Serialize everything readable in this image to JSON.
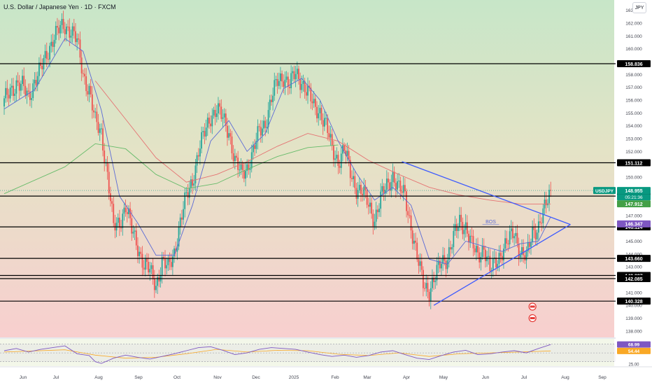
{
  "header": {
    "title": "U.S. Dollar / Japanese Yen · 1D · FXCM",
    "currency_button": "JPY"
  },
  "colors": {
    "up": "#26a69a",
    "down": "#ef5350",
    "ema_fast": "#5b6bd6",
    "ma_red": "#e57373",
    "ma_green": "#66bb6a",
    "triangle": "#3d5afe",
    "hline": "#000000",
    "bg_top": "#c7e6c8",
    "bg_bottom": "#f8cfcf"
  },
  "chart_data": [
    {
      "type": "candlestick",
      "symbol": "USDJPY",
      "timeframe": "1D",
      "ylim": [
        137.5,
        163.8
      ],
      "time_labels": [
        "Jun",
        "Jul",
        "Aug",
        "Sep",
        "Oct",
        "Nov",
        "Dec",
        "2025",
        "Feb",
        "Mar",
        "Apr",
        "May",
        "Jun",
        "Jul",
        "Aug",
        "Sep"
      ],
      "y_ticks": [
        "163.000",
        "162.000",
        "161.000",
        "160.000",
        "159.000",
        "158.000",
        "157.000",
        "156.000",
        "155.000",
        "154.000",
        "153.000",
        "152.000",
        "151.000",
        "150.000",
        "149.000",
        "148.000",
        "147.000",
        "146.000",
        "145.000",
        "144.000",
        "143.000",
        "142.000",
        "141.000",
        "140.000",
        "139.000",
        "138.000"
      ],
      "y_tick_values": [
        163,
        162,
        161,
        160,
        159,
        158,
        157,
        156,
        155,
        154,
        153,
        152,
        151,
        150,
        149,
        148,
        147,
        146,
        145,
        144,
        143,
        142,
        141,
        140,
        139,
        138
      ],
      "close_path": [
        [
          0,
          155.8
        ],
        [
          4,
          156.8
        ],
        [
          8,
          157.3
        ],
        [
          12,
          157.0
        ],
        [
          16,
          156.3
        ],
        [
          20,
          157.5
        ],
        [
          24,
          158.3
        ],
        [
          28,
          159.6
        ],
        [
          32,
          160.8
        ],
        [
          36,
          161.4
        ],
        [
          40,
          161.8
        ],
        [
          44,
          161.5
        ],
        [
          48,
          160.5
        ],
        [
          52,
          158.0
        ],
        [
          56,
          156.8
        ],
        [
          60,
          154.2
        ],
        [
          64,
          153.5
        ],
        [
          68,
          150.2
        ],
        [
          72,
          146.0
        ],
        [
          76,
          146.5
        ],
        [
          80,
          147.8
        ],
        [
          84,
          145.8
        ],
        [
          88,
          144.6
        ],
        [
          92,
          143.2
        ],
        [
          96,
          142.6
        ],
        [
          100,
          141.6
        ],
        [
          104,
          143.4
        ],
        [
          108,
          142.8
        ],
        [
          112,
          144.2
        ],
        [
          116,
          146.5
        ],
        [
          120,
          148.4
        ],
        [
          124,
          149.8
        ],
        [
          128,
          152.0
        ],
        [
          132,
          153.4
        ],
        [
          136,
          154.8
        ],
        [
          140,
          155.3
        ],
        [
          144,
          154.5
        ],
        [
          148,
          153.6
        ],
        [
          152,
          151.2
        ],
        [
          156,
          150.2
        ],
        [
          160,
          150.8
        ],
        [
          164,
          152.0
        ],
        [
          168,
          153.5
        ],
        [
          172,
          154.3
        ],
        [
          176,
          156.1
        ],
        [
          180,
          157.4
        ],
        [
          184,
          157.9
        ],
        [
          188,
          157.2
        ],
        [
          192,
          158.0
        ],
        [
          196,
          157.5
        ],
        [
          200,
          156.6
        ],
        [
          204,
          155.4
        ],
        [
          208,
          155.2
        ],
        [
          212,
          154.0
        ],
        [
          216,
          152.1
        ],
        [
          220,
          151.3
        ],
        [
          224,
          152.2
        ],
        [
          228,
          150.3
        ],
        [
          232,
          149.2
        ],
        [
          236,
          148.8
        ],
        [
          240,
          147.8
        ],
        [
          244,
          146.8
        ],
        [
          248,
          148.3
        ],
        [
          252,
          149.3
        ],
        [
          256,
          150.2
        ],
        [
          260,
          149.0
        ],
        [
          264,
          148.6
        ],
        [
          268,
          146.2
        ],
        [
          272,
          143.6
        ],
        [
          276,
          141.8
        ],
        [
          280,
          141.2
        ],
        [
          284,
          142.1
        ],
        [
          288,
          143.5
        ],
        [
          292,
          143.8
        ],
        [
          296,
          145.2
        ],
        [
          300,
          146.6
        ],
        [
          304,
          146.2
        ],
        [
          308,
          144.6
        ],
        [
          312,
          143.9
        ],
        [
          316,
          144.6
        ],
        [
          320,
          142.6
        ],
        [
          324,
          143.5
        ],
        [
          328,
          144.3
        ],
        [
          332,
          144.9
        ],
        [
          336,
          145.8
        ],
        [
          340,
          144.2
        ],
        [
          344,
          143.6
        ],
        [
          348,
          145.8
        ],
        [
          352,
          146.2
        ],
        [
          356,
          147.4
        ],
        [
          360,
          148.95
        ]
      ],
      "overlays": {
        "ema_fast": [
          [
            0,
            155.3
          ],
          [
            20,
            156.8
          ],
          [
            40,
            160.8
          ],
          [
            52,
            159.8
          ],
          [
            64,
            155.2
          ],
          [
            76,
            148.5
          ],
          [
            88,
            146.4
          ],
          [
            100,
            143.9
          ],
          [
            112,
            143.9
          ],
          [
            124,
            147.8
          ],
          [
            136,
            152.8
          ],
          [
            148,
            154.4
          ],
          [
            160,
            152.0
          ],
          [
            172,
            153.4
          ],
          [
            184,
            156.9
          ],
          [
            196,
            157.7
          ],
          [
            208,
            156.0
          ],
          [
            220,
            152.8
          ],
          [
            232,
            150.3
          ],
          [
            244,
            148.2
          ],
          [
            256,
            149.2
          ],
          [
            268,
            147.8
          ],
          [
            280,
            143.6
          ],
          [
            292,
            143.2
          ],
          [
            304,
            145.0
          ],
          [
            316,
            144.6
          ],
          [
            328,
            144.2
          ],
          [
            340,
            144.8
          ],
          [
            352,
            145.0
          ],
          [
            360,
            146.9
          ]
        ],
        "ma_red": [
          [
            60,
            157.5
          ],
          [
            80,
            154.5
          ],
          [
            100,
            151.5
          ],
          [
            120,
            149.6
          ],
          [
            140,
            150.2
          ],
          [
            160,
            151.2
          ],
          [
            180,
            152.4
          ],
          [
            200,
            153.4
          ],
          [
            220,
            152.8
          ],
          [
            240,
            151.3
          ],
          [
            260,
            150.2
          ],
          [
            280,
            149.2
          ],
          [
            300,
            148.6
          ],
          [
            320,
            148.2
          ],
          [
            340,
            147.9
          ],
          [
            360,
            147.9
          ]
        ],
        "ma_green": [
          [
            0,
            148.7
          ],
          [
            40,
            150.8
          ],
          [
            60,
            152.6
          ],
          [
            80,
            152.2
          ],
          [
            100,
            150.2
          ],
          [
            120,
            149.1
          ],
          [
            140,
            149.5
          ],
          [
            160,
            150.6
          ],
          [
            180,
            151.6
          ],
          [
            200,
            152.3
          ],
          [
            220,
            152.5
          ]
        ]
      },
      "horizontal_levels": [
        {
          "value": 158.836,
          "label": "158.836"
        },
        {
          "value": 151.112,
          "label": "151.112"
        },
        {
          "value": 148.517,
          "label": "148.517"
        },
        {
          "value": 146.114,
          "label": "146.114"
        },
        {
          "value": 143.66,
          "label": "143.660"
        },
        {
          "value": 142.327,
          "label": "142.327"
        },
        {
          "value": 142.085,
          "label": "142.085"
        },
        {
          "value": 140.328,
          "label": "140.328"
        }
      ],
      "price_badges": [
        {
          "value": 148.955,
          "label": "148.955",
          "color": "#089981"
        },
        {
          "value": 147.912,
          "label": "147.912",
          "color": "#43a047"
        },
        {
          "value": 146.347,
          "label": "146.347",
          "color": "#7e57c2"
        }
      ],
      "symbol_badge": "USDJPY",
      "countdown": "05:21:36",
      "triangle": {
        "upper": [
          [
            262,
            151.2
          ],
          [
            373,
            146.3
          ]
        ],
        "lower": [
          [
            283,
            140.0
          ],
          [
            373,
            146.3
          ]
        ]
      },
      "annotation": {
        "text": "BOS",
        "x_start": 315,
        "x_end": 326,
        "y": 146.3
      }
    },
    {
      "type": "line",
      "name": "RSI",
      "ylim": [
        20,
        82
      ],
      "y_ticks": [
        "70.00",
        "25.00"
      ],
      "levels": [
        70,
        50,
        30
      ],
      "current": [
        {
          "label": "68.99",
          "value": 68.99,
          "color": "#7e57c2"
        },
        {
          "label": "54.44",
          "value": 54.44,
          "color": "#f9a825"
        }
      ],
      "rsi": [
        [
          0,
          55
        ],
        [
          8,
          60
        ],
        [
          16,
          52
        ],
        [
          24,
          58
        ],
        [
          32,
          62
        ],
        [
          40,
          66
        ],
        [
          48,
          48
        ],
        [
          56,
          44
        ],
        [
          60,
          30
        ],
        [
          64,
          26
        ],
        [
          68,
          32
        ],
        [
          72,
          38
        ],
        [
          80,
          45
        ],
        [
          88,
          40
        ],
        [
          96,
          36
        ],
        [
          104,
          42
        ],
        [
          112,
          48
        ],
        [
          120,
          55
        ],
        [
          128,
          62
        ],
        [
          136,
          64
        ],
        [
          144,
          56
        ],
        [
          152,
          46
        ],
        [
          160,
          50
        ],
        [
          168,
          58
        ],
        [
          176,
          62
        ],
        [
          184,
          60
        ],
        [
          192,
          58
        ],
        [
          200,
          52
        ],
        [
          208,
          46
        ],
        [
          216,
          42
        ],
        [
          224,
          45
        ],
        [
          232,
          40
        ],
        [
          240,
          44
        ],
        [
          248,
          52
        ],
        [
          256,
          55
        ],
        [
          264,
          46
        ],
        [
          272,
          38
        ],
        [
          280,
          35
        ],
        [
          288,
          44
        ],
        [
          296,
          52
        ],
        [
          304,
          56
        ],
        [
          312,
          46
        ],
        [
          320,
          48
        ],
        [
          328,
          52
        ],
        [
          336,
          55
        ],
        [
          344,
          50
        ],
        [
          352,
          60
        ],
        [
          360,
          69
        ]
      ],
      "rsi_ma": [
        [
          0,
          52
        ],
        [
          40,
          57
        ],
        [
          60,
          45
        ],
        [
          80,
          38
        ],
        [
          100,
          40
        ],
        [
          120,
          48
        ],
        [
          140,
          58
        ],
        [
          160,
          52
        ],
        [
          180,
          56
        ],
        [
          200,
          55
        ],
        [
          220,
          47
        ],
        [
          240,
          44
        ],
        [
          260,
          50
        ],
        [
          280,
          42
        ],
        [
          300,
          48
        ],
        [
          320,
          50
        ],
        [
          340,
          52
        ],
        [
          360,
          54.44
        ]
      ]
    }
  ]
}
